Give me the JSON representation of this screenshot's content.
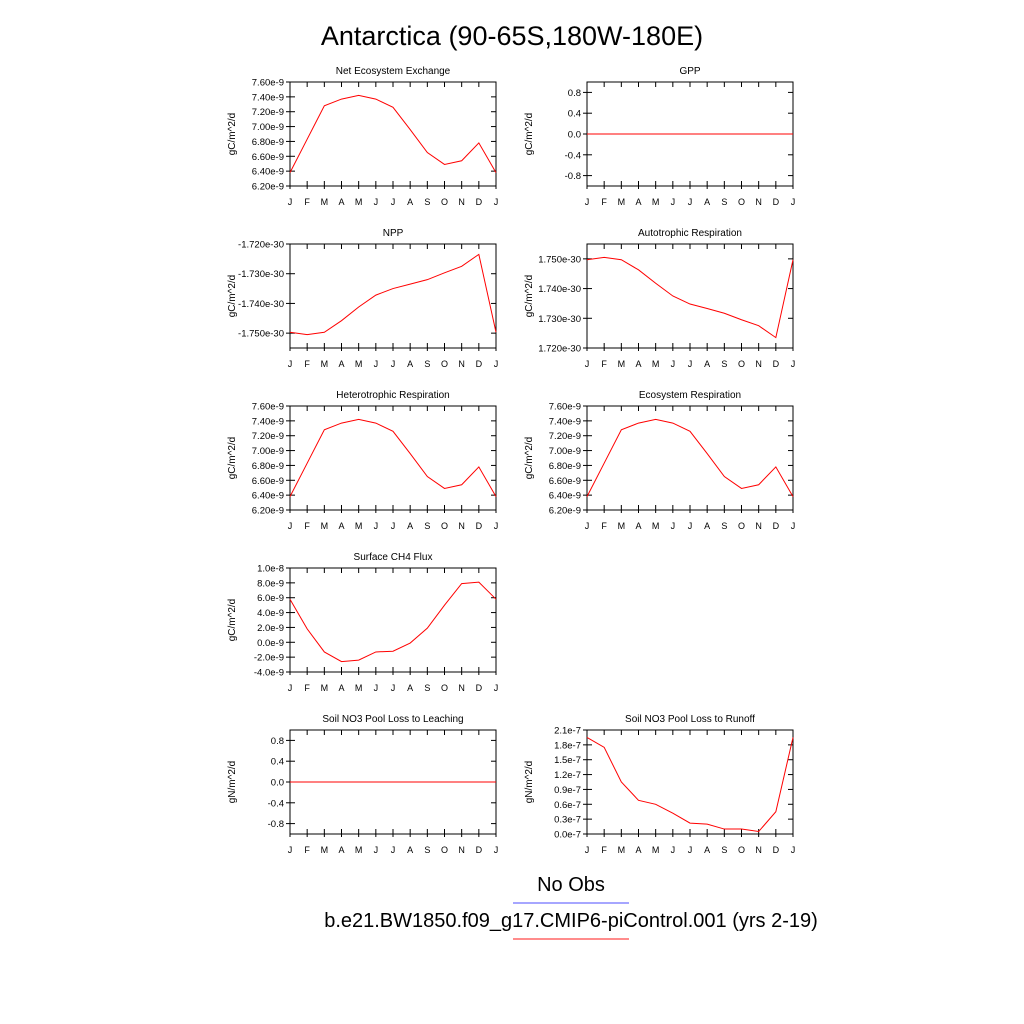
{
  "figure": {
    "title": "Antarctica (90-65S,180W-180E)",
    "legend": [
      {
        "label": "No Obs",
        "color": "#8888ff"
      },
      {
        "label": "b.e21.BW1850.f09_g17.CMIP6-piControl.001 (yrs 2-19)",
        "color": "#ff6666"
      }
    ]
  },
  "colors": {
    "series": "#ff0000",
    "axis": "#000000"
  },
  "chart_data": [
    {
      "type": "line",
      "title": "Net Ecosystem Exchange",
      "ylabel": "gC/m^2/d",
      "x": [
        "J",
        "F",
        "M",
        "A",
        "M",
        "J",
        "J",
        "A",
        "S",
        "O",
        "N",
        "D",
        "J"
      ],
      "ylim": [
        6.2e-09,
        7.6e-09
      ],
      "yticks": [
        6.2e-09,
        6.4e-09,
        6.6e-09,
        6.8e-09,
        7e-09,
        7.2e-09,
        7.4e-09,
        7.6e-09
      ],
      "yticklabels": [
        "6.20e-9",
        "6.40e-9",
        "6.60e-9",
        "6.80e-9",
        "7.00e-9",
        "7.20e-9",
        "7.40e-9",
        "7.60e-9"
      ],
      "series": [
        {
          "values": [
            6.38e-09,
            6.83e-09,
            7.28e-09,
            7.37e-09,
            7.42e-09,
            7.37e-09,
            7.26e-09,
            6.96e-09,
            6.65e-09,
            6.49e-09,
            6.54e-09,
            6.78e-09,
            6.38e-09
          ]
        }
      ]
    },
    {
      "type": "line",
      "title": "GPP",
      "ylabel": "gC/m^2/d",
      "x": [
        "J",
        "F",
        "M",
        "A",
        "M",
        "J",
        "J",
        "A",
        "S",
        "O",
        "N",
        "D",
        "J"
      ],
      "ylim": [
        -1,
        1
      ],
      "yticks": [
        -0.8,
        -0.4,
        0.0,
        0.4,
        0.8
      ],
      "yticklabels": [
        "-0.8",
        "-0.4",
        "0.0",
        "0.4",
        "0.8"
      ],
      "series": [
        {
          "values": [
            0,
            0,
            0,
            0,
            0,
            0,
            0,
            0,
            0,
            0,
            0,
            0,
            0
          ]
        }
      ]
    },
    {
      "type": "line",
      "title": "NPP",
      "ylabel": "gC/m^2/d",
      "x": [
        "J",
        "F",
        "M",
        "A",
        "M",
        "J",
        "J",
        "A",
        "S",
        "O",
        "N",
        "D",
        "J"
      ],
      "ylim": [
        -1.755e-30,
        -1.72e-30
      ],
      "yticks": [
        -1.75e-30,
        -1.74e-30,
        -1.73e-30,
        -1.72e-30
      ],
      "yticklabels": [
        "-1.750e-30",
        "-1.740e-30",
        "-1.730e-30",
        "-1.720e-30"
      ],
      "series": [
        {
          "values": [
            -1.7497e-30,
            -1.7505e-30,
            -1.7497e-30,
            -1.7458e-30,
            -1.7412e-30,
            -1.7372e-30,
            -1.735e-30,
            -1.7335e-30,
            -1.732e-30,
            -1.7297e-30,
            -1.7275e-30,
            -1.7235e-30,
            -1.7497e-30
          ]
        }
      ]
    },
    {
      "type": "line",
      "title": "Autotrophic Respiration",
      "ylabel": "gC/m^2/d",
      "x": [
        "J",
        "F",
        "M",
        "A",
        "M",
        "J",
        "J",
        "A",
        "S",
        "O",
        "N",
        "D",
        "J"
      ],
      "ylim": [
        1.72e-30,
        1.755e-30
      ],
      "yticks": [
        1.72e-30,
        1.73e-30,
        1.74e-30,
        1.75e-30
      ],
      "yticklabels": [
        "1.720e-30",
        "1.730e-30",
        "1.740e-30",
        "1.750e-30"
      ],
      "series": [
        {
          "values": [
            1.7497e-30,
            1.7505e-30,
            1.7497e-30,
            1.7463e-30,
            1.7418e-30,
            1.7375e-30,
            1.7348e-30,
            1.7333e-30,
            1.7317e-30,
            1.7295e-30,
            1.7275e-30,
            1.7235e-30,
            1.7497e-30
          ]
        }
      ]
    },
    {
      "type": "line",
      "title": "Heterotrophic Respiration",
      "ylabel": "gC/m^2/d",
      "x": [
        "J",
        "F",
        "M",
        "A",
        "M",
        "J",
        "J",
        "A",
        "S",
        "O",
        "N",
        "D",
        "J"
      ],
      "ylim": [
        6.2e-09,
        7.6e-09
      ],
      "yticks": [
        6.2e-09,
        6.4e-09,
        6.6e-09,
        6.8e-09,
        7e-09,
        7.2e-09,
        7.4e-09,
        7.6e-09
      ],
      "yticklabels": [
        "6.20e-9",
        "6.40e-9",
        "6.60e-9",
        "6.80e-9",
        "7.00e-9",
        "7.20e-9",
        "7.40e-9",
        "7.60e-9"
      ],
      "series": [
        {
          "values": [
            6.38e-09,
            6.83e-09,
            7.28e-09,
            7.37e-09,
            7.42e-09,
            7.37e-09,
            7.26e-09,
            6.96e-09,
            6.65e-09,
            6.49e-09,
            6.54e-09,
            6.78e-09,
            6.38e-09
          ]
        }
      ]
    },
    {
      "type": "line",
      "title": "Ecosystem Respiration",
      "ylabel": "gC/m^2/d",
      "x": [
        "J",
        "F",
        "M",
        "A",
        "M",
        "J",
        "J",
        "A",
        "S",
        "O",
        "N",
        "D",
        "J"
      ],
      "ylim": [
        6.2e-09,
        7.6e-09
      ],
      "yticks": [
        6.2e-09,
        6.4e-09,
        6.6e-09,
        6.8e-09,
        7e-09,
        7.2e-09,
        7.4e-09,
        7.6e-09
      ],
      "yticklabels": [
        "6.20e-9",
        "6.40e-9",
        "6.60e-9",
        "6.80e-9",
        "7.00e-9",
        "7.20e-9",
        "7.40e-9",
        "7.60e-9"
      ],
      "series": [
        {
          "values": [
            6.38e-09,
            6.83e-09,
            7.28e-09,
            7.37e-09,
            7.42e-09,
            7.37e-09,
            7.26e-09,
            6.96e-09,
            6.65e-09,
            6.49e-09,
            6.54e-09,
            6.78e-09,
            6.38e-09
          ]
        }
      ]
    },
    {
      "type": "line",
      "title": "Surface CH4 Flux",
      "ylabel": "gC/m^2/d",
      "x": [
        "J",
        "F",
        "M",
        "A",
        "M",
        "J",
        "J",
        "A",
        "S",
        "O",
        "N",
        "D",
        "J"
      ],
      "ylim": [
        -4e-09,
        1e-08
      ],
      "yticks": [
        -4e-09,
        -2e-09,
        0.0,
        2e-09,
        4e-09,
        6e-09,
        8e-09,
        1e-08
      ],
      "yticklabels": [
        "-4.0e-9",
        "-2.0e-9",
        "0.0e-9",
        "2.0e-9",
        "4.0e-9",
        "6.0e-9",
        "8.0e-9",
        "1.0e-8"
      ],
      "series": [
        {
          "values": [
            5.8e-09,
            1.8e-09,
            -1.3e-09,
            -2.6e-09,
            -2.4e-09,
            -1.3e-09,
            -1.2e-09,
            -1e-10,
            1.9e-09,
            5e-09,
            7.9e-09,
            8.1e-09,
            5.8e-09
          ]
        }
      ]
    },
    {
      "type": "line",
      "title": "Soil NO3 Pool Loss to Leaching",
      "ylabel": "gN/m^2/d",
      "x": [
        "J",
        "F",
        "M",
        "A",
        "M",
        "J",
        "J",
        "A",
        "S",
        "O",
        "N",
        "D",
        "J"
      ],
      "ylim": [
        -1,
        1
      ],
      "yticks": [
        -0.8,
        -0.4,
        0.0,
        0.4,
        0.8
      ],
      "yticklabels": [
        "-0.8",
        "-0.4",
        "0.0",
        "0.4",
        "0.8"
      ],
      "series": [
        {
          "values": [
            0,
            0,
            0,
            0,
            0,
            0,
            0,
            0,
            0,
            0,
            0,
            0,
            0
          ]
        }
      ]
    },
    {
      "type": "line",
      "title": "Soil NO3 Pool Loss to Runoff",
      "ylabel": "gN/m^2/d",
      "x": [
        "J",
        "F",
        "M",
        "A",
        "M",
        "J",
        "J",
        "A",
        "S",
        "O",
        "N",
        "D",
        "J"
      ],
      "ylim": [
        0,
        2.1e-07
      ],
      "yticks": [
        0,
        3e-08,
        6e-08,
        9e-08,
        1.2e-07,
        1.5e-07,
        1.8e-07,
        2.1e-07
      ],
      "yticklabels": [
        "0.0e-7",
        "0.3e-7",
        "0.6e-7",
        "0.9e-7",
        "1.2e-7",
        "1.5e-7",
        "1.8e-7",
        "2.1e-7"
      ],
      "series": [
        {
          "values": [
            1.95e-07,
            1.75e-07,
            1.05e-07,
            6.8e-08,
            6e-08,
            4.2e-08,
            2.2e-08,
            2e-08,
            1e-08,
            1e-08,
            5e-09,
            4.5e-08,
            1.95e-07
          ]
        }
      ]
    }
  ]
}
